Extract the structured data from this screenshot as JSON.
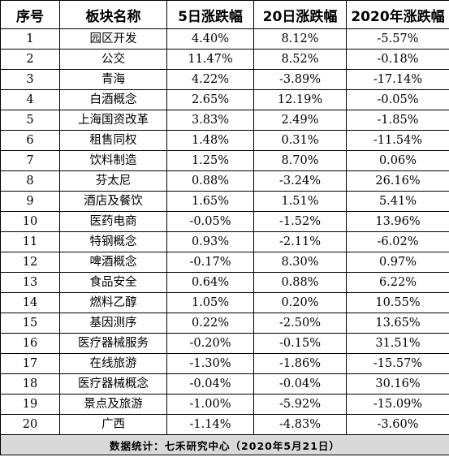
{
  "table": {
    "headers": [
      "序号",
      "板块名称",
      "5日涨跌幅",
      "20日涨跌幅",
      "2020年涨跌幅"
    ],
    "rows": [
      [
        "1",
        "园区开发",
        "4.40%",
        "8.12%",
        "-5.57%"
      ],
      [
        "2",
        "公交",
        "11.47%",
        "8.52%",
        "-0.18%"
      ],
      [
        "3",
        "青海",
        "4.22%",
        "-3.89%",
        "-17.14%"
      ],
      [
        "4",
        "白酒概念",
        "2.65%",
        "12.19%",
        "-0.05%"
      ],
      [
        "5",
        "上海国资改革",
        "3.83%",
        "2.49%",
        "-1.85%"
      ],
      [
        "6",
        "租售同权",
        "1.48%",
        "0.31%",
        "-11.54%"
      ],
      [
        "7",
        "饮料制造",
        "1.25%",
        "8.70%",
        "0.06%"
      ],
      [
        "8",
        "芬太尼",
        "0.88%",
        "-3.24%",
        "26.16%"
      ],
      [
        "9",
        "酒店及餐饮",
        "1.65%",
        "1.51%",
        "5.41%"
      ],
      [
        "10",
        "医药电商",
        "-0.05%",
        "-1.52%",
        "13.96%"
      ],
      [
        "11",
        "特钢概念",
        "0.93%",
        "-2.11%",
        "-6.02%"
      ],
      [
        "12",
        "啤酒概念",
        "-0.17%",
        "8.30%",
        "0.97%"
      ],
      [
        "13",
        "食品安全",
        "0.64%",
        "0.88%",
        "6.22%"
      ],
      [
        "14",
        "燃料乙醇",
        "1.05%",
        "0.20%",
        "10.55%"
      ],
      [
        "15",
        "基因测序",
        "0.22%",
        "-2.50%",
        "13.65%"
      ],
      [
        "16",
        "医疗器械服务",
        "-0.20%",
        "-0.15%",
        "31.51%"
      ],
      [
        "17",
        "在线旅游",
        "-1.30%",
        "-1.86%",
        "-15.57%"
      ],
      [
        "18",
        "医疗器械概念",
        "-0.04%",
        "-0.04%",
        "30.16%"
      ],
      [
        "19",
        "景点及旅游",
        "-1.00%",
        "-5.92%",
        "-15.09%"
      ],
      [
        "20",
        "广西",
        "-1.14%",
        "-4.83%",
        "-3.60%"
      ]
    ],
    "footer": "数据统计：七禾研究中心（2020年5月21日）"
  },
  "colors": {
    "border": "#000000",
    "footer_bg": "#d9d9d9"
  }
}
